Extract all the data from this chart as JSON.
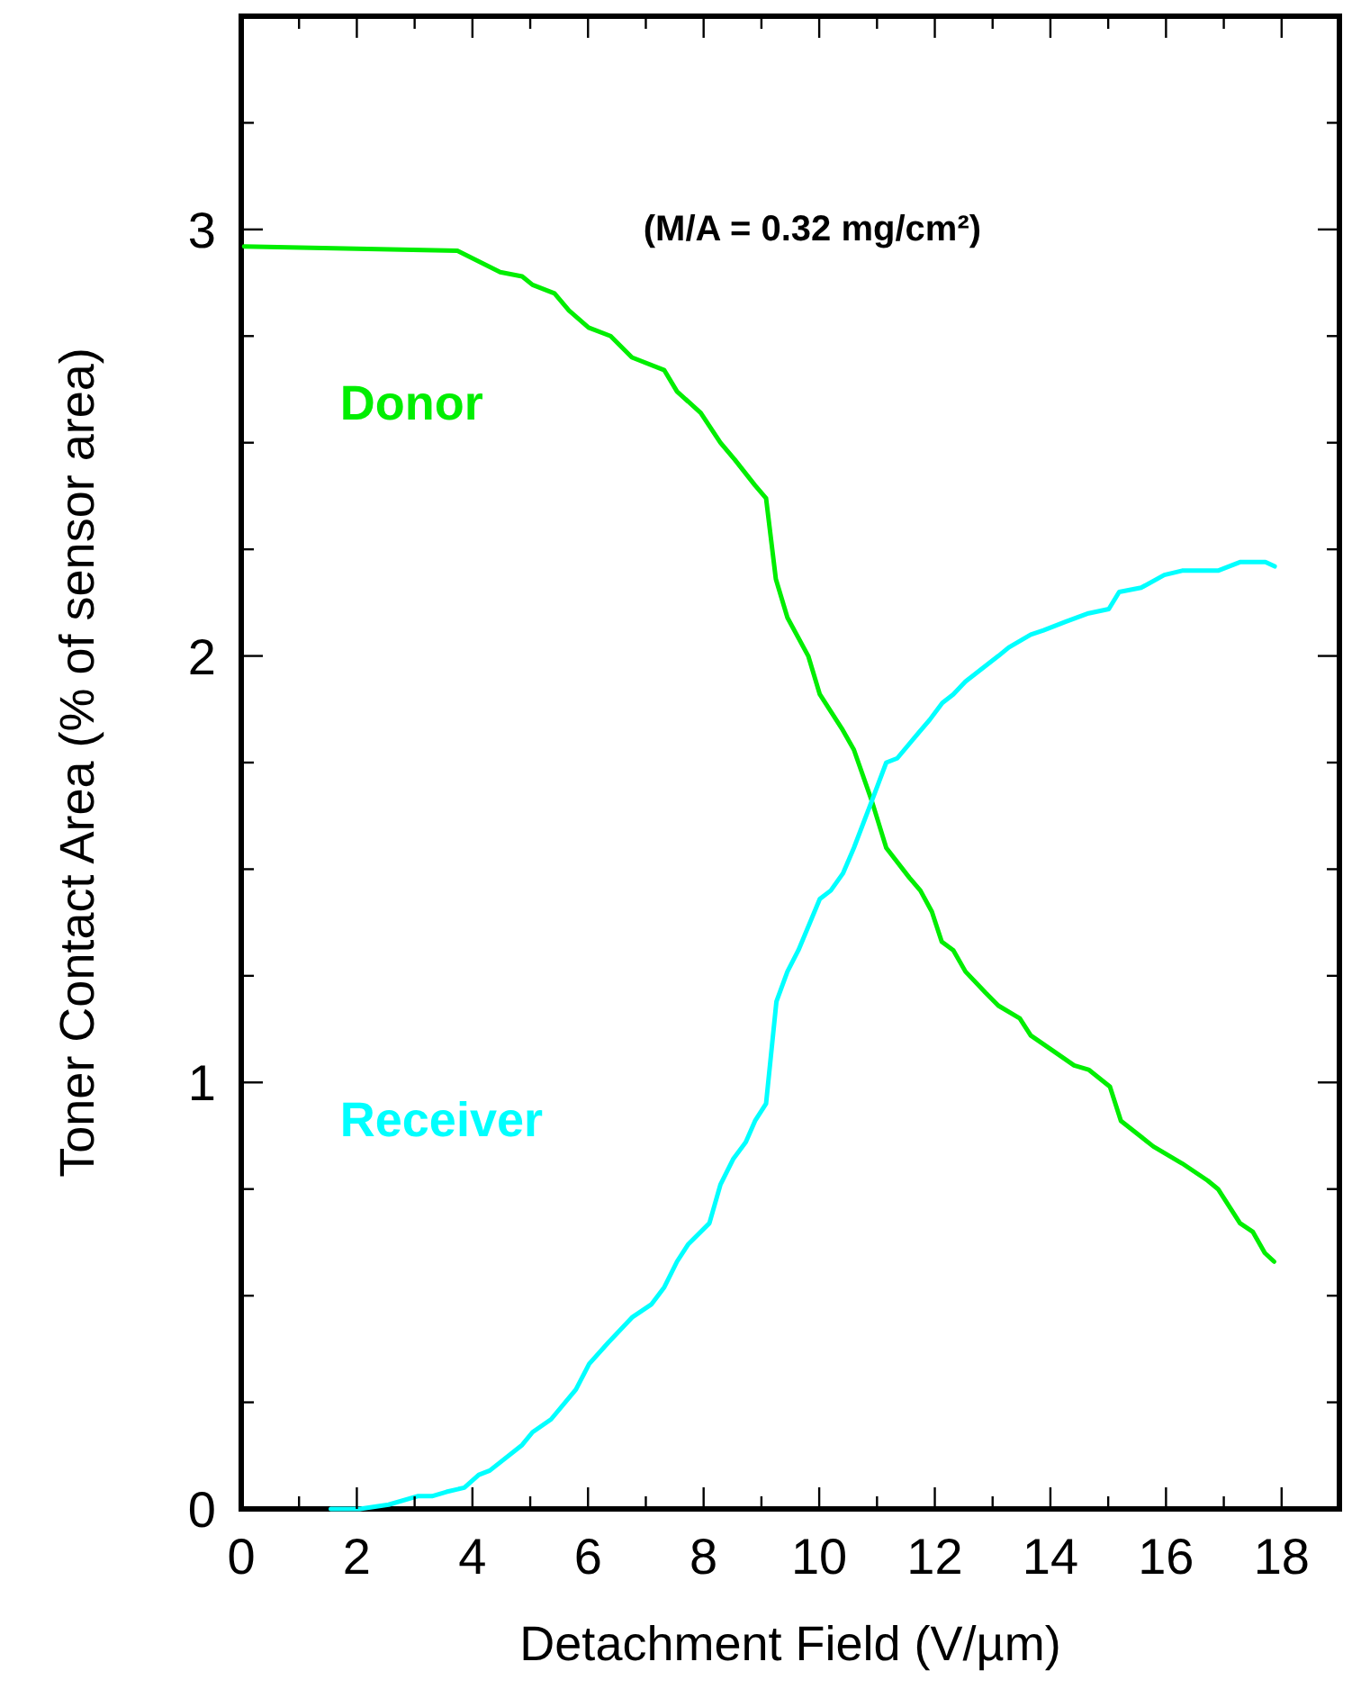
{
  "chart_data": {
    "type": "line",
    "xlabel": "Detachment Field (V/µm)",
    "ylabel": "Toner Contact Area (% of sensor area)",
    "annotations": [
      "(M/A = 0.32 mg/cm²)"
    ],
    "xlim": [
      0,
      19
    ],
    "ylim": [
      0,
      3.5
    ],
    "xticks": [
      0,
      {
        "value": 1,
        "label": null
      },
      2,
      {
        "value": 3,
        "label": null
      },
      4,
      {
        "value": 5,
        "label": null
      },
      6,
      {
        "value": 7,
        "label": null
      },
      8,
      {
        "value": 9,
        "label": null
      },
      10,
      {
        "value": 11,
        "label": null
      },
      12,
      {
        "value": 13,
        "label": null
      },
      14,
      {
        "value": 15,
        "label": null
      },
      16,
      {
        "value": 17,
        "label": null
      },
      18
    ],
    "yticks": [
      0,
      {
        "value": 0.25,
        "label": null
      },
      {
        "value": 0.5,
        "label": null
      },
      {
        "value": 0.75,
        "label": null
      },
      1,
      {
        "value": 1.25,
        "label": null
      },
      {
        "value": 1.5,
        "label": null
      },
      {
        "value": 1.75,
        "label": null
      },
      2,
      {
        "value": 2.25,
        "label": null
      },
      {
        "value": 2.5,
        "label": null
      },
      {
        "value": 2.75,
        "label": null
      },
      3,
      {
        "value": 3.25,
        "label": null
      }
    ],
    "grid": false,
    "marker": "none",
    "line_style": "solid",
    "series": [
      {
        "name": "Donor",
        "color": "#00ee00",
        "x": [
          0.05,
          3.74,
          4.48,
          4.86,
          5.04,
          5.42,
          5.67,
          6.01,
          6.39,
          6.76,
          7.32,
          7.54,
          7.95,
          8.29,
          8.54,
          8.89,
          9.08,
          9.25,
          9.45,
          9.81,
          10.01,
          10.39,
          10.6,
          10.91,
          11.16,
          11.56,
          11.75,
          11.95,
          12.12,
          12.32,
          12.53,
          12.88,
          13.1,
          13.47,
          13.66,
          14.09,
          14.41,
          14.66,
          15.03,
          15.22,
          15.78,
          16.28,
          16.72,
          16.9,
          17.28,
          17.5,
          17.71,
          17.87
        ],
        "values": [
          2.96,
          2.95,
          2.9,
          2.89,
          2.87,
          2.85,
          2.81,
          2.77,
          2.75,
          2.7,
          2.67,
          2.62,
          2.57,
          2.5,
          2.46,
          2.4,
          2.37,
          2.18,
          2.09,
          2.0,
          1.91,
          1.83,
          1.78,
          1.66,
          1.55,
          1.48,
          1.45,
          1.4,
          1.33,
          1.31,
          1.26,
          1.21,
          1.18,
          1.15,
          1.11,
          1.07,
          1.04,
          1.03,
          0.99,
          0.91,
          0.85,
          0.81,
          0.77,
          0.75,
          0.67,
          0.65,
          0.6,
          0.58
        ]
      },
      {
        "name": "Receiver",
        "color": "#00ffff",
        "x": [
          1.55,
          2.05,
          2.55,
          3.05,
          3.3,
          3.55,
          3.86,
          4.11,
          4.3,
          4.86,
          5.04,
          5.36,
          5.79,
          6.02,
          6.35,
          6.77,
          7.1,
          7.32,
          7.54,
          7.73,
          8.1,
          8.29,
          8.51,
          8.73,
          8.89,
          9.08,
          9.26,
          9.45,
          9.64,
          10.01,
          10.2,
          10.41,
          10.6,
          10.91,
          11.16,
          11.35,
          11.72,
          11.91,
          12.13,
          12.32,
          12.53,
          12.72,
          13.1,
          13.28,
          13.66,
          13.88,
          14.26,
          14.66,
          15.01,
          15.19,
          15.57,
          15.97,
          16.28,
          16.53,
          16.9,
          17.28,
          17.53,
          17.72,
          17.88
        ],
        "values": [
          0.0,
          0.0,
          0.01,
          0.03,
          0.03,
          0.04,
          0.05,
          0.08,
          0.09,
          0.15,
          0.18,
          0.21,
          0.28,
          0.34,
          0.39,
          0.45,
          0.48,
          0.52,
          0.58,
          0.62,
          0.67,
          0.76,
          0.82,
          0.86,
          0.91,
          0.95,
          1.19,
          1.26,
          1.31,
          1.43,
          1.45,
          1.49,
          1.55,
          1.66,
          1.75,
          1.76,
          1.82,
          1.85,
          1.89,
          1.91,
          1.94,
          1.96,
          2.0,
          2.02,
          2.05,
          2.06,
          2.08,
          2.1,
          2.11,
          2.15,
          2.16,
          2.19,
          2.2,
          2.2,
          2.2,
          2.22,
          2.22,
          2.22,
          2.21
        ]
      }
    ]
  }
}
